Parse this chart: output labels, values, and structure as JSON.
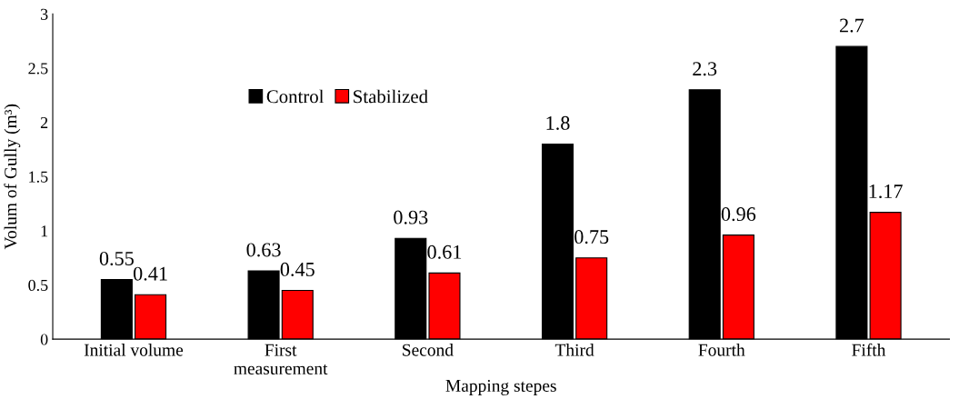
{
  "chart_data": {
    "type": "bar",
    "xlabel": "Mapping stepes",
    "ylabel": "Volum of Gully (m³)",
    "categories": [
      "Initial volume",
      "First\nmeasurement",
      "Second",
      "Third",
      "Fourth",
      "Fifth"
    ],
    "series": [
      {
        "name": "Control",
        "color": "#000000",
        "values": [
          0.55,
          0.63,
          0.93,
          1.8,
          2.3,
          2.7
        ]
      },
      {
        "name": "Stabilized",
        "color": "#ff0000",
        "values": [
          0.41,
          0.45,
          0.61,
          0.75,
          0.96,
          1.17
        ]
      }
    ],
    "ylim": [
      0,
      3
    ],
    "yticks": [
      0,
      0.5,
      1,
      1.5,
      2,
      2.5,
      3
    ],
    "grid": false,
    "legend": "top left",
    "data_labels": true
  }
}
